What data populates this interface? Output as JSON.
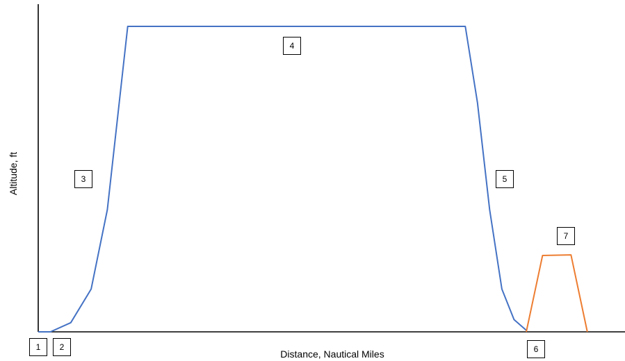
{
  "chart_data": {
    "type": "line",
    "xlabel": "Distance, Nautical Miles",
    "ylabel": "Altitude, ft",
    "segment_labels": [
      "1",
      "2",
      "3",
      "4",
      "5",
      "6",
      "7"
    ],
    "series": [
      {
        "color": "#4472C4",
        "points": [
          [
            0,
            0
          ],
          [
            3,
            0
          ],
          [
            8,
            3
          ],
          [
            13,
            14
          ],
          [
            17,
            40
          ],
          [
            22,
            100
          ],
          [
            28,
            100
          ],
          [
            100,
            100
          ],
          [
            105,
            100
          ],
          [
            108,
            75
          ],
          [
            111,
            40
          ],
          [
            114,
            14
          ],
          [
            117,
            4
          ],
          [
            120,
            0.5
          ]
        ]
      },
      {
        "color": "#ED7D31",
        "points": [
          [
            120,
            0
          ],
          [
            124,
            25
          ],
          [
            131,
            25.2
          ],
          [
            135,
            0
          ]
        ]
      }
    ]
  },
  "colors": {
    "axis": "#000000",
    "box_border": "#000000"
  }
}
